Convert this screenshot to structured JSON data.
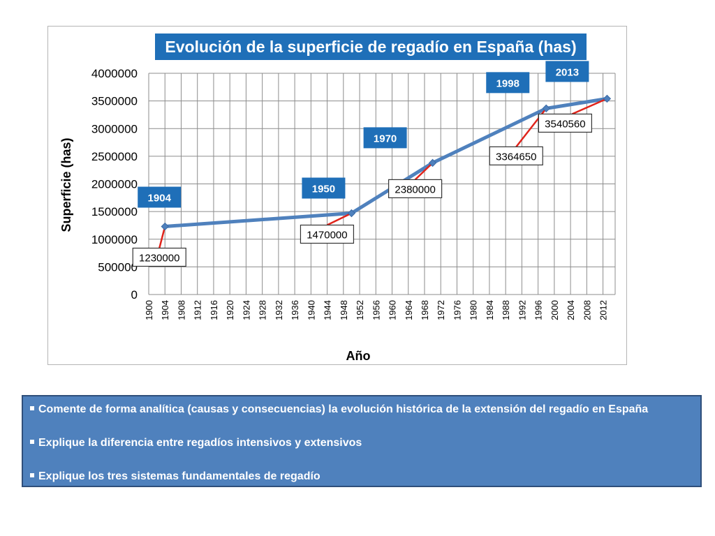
{
  "chart_data": {
    "type": "line",
    "title": "Evolución de la superficie de regadío en España (has)",
    "xlabel": "Año",
    "ylabel": "Superficie (has)",
    "xlim": [
      1900,
      2015
    ],
    "ylim": [
      0,
      4000000
    ],
    "x_ticks": [
      1900,
      1904,
      1908,
      1912,
      1916,
      1920,
      1924,
      1928,
      1932,
      1936,
      1940,
      1944,
      1948,
      1952,
      1956,
      1960,
      1964,
      1968,
      1972,
      1976,
      1980,
      1984,
      1988,
      1992,
      1996,
      2000,
      2004,
      2008,
      2012
    ],
    "y_ticks": [
      0,
      500000,
      1000000,
      1500000,
      2000000,
      2500000,
      3000000,
      3500000,
      4000000
    ],
    "grid": true,
    "line_color": "#4f81bd",
    "series": [
      {
        "points": [
          {
            "x": 1904,
            "y": 1230000
          },
          {
            "x": 1950,
            "y": 1470000
          },
          {
            "x": 1970,
            "y": 2380000
          },
          {
            "x": 1998,
            "y": 3364650
          },
          {
            "x": 2013,
            "y": 3540560
          }
        ]
      }
    ],
    "annotations": [
      {
        "year_label": "1904",
        "value_label": "1230000"
      },
      {
        "year_label": "1950",
        "value_label": "1470000"
      },
      {
        "year_label": "1970",
        "value_label": "2380000"
      },
      {
        "year_label": "1998",
        "value_label": "3364650"
      },
      {
        "year_label": "2013",
        "value_label": "3540560"
      }
    ]
  },
  "questions": [
    "Comente de forma analítica (causas y consecuencias) la evolución histórica de la extensión del regadío en España",
    "Explique la diferencia entre regadíos intensivos y extensivos",
    "Explique los tres sistemas fundamentales de regadío"
  ]
}
